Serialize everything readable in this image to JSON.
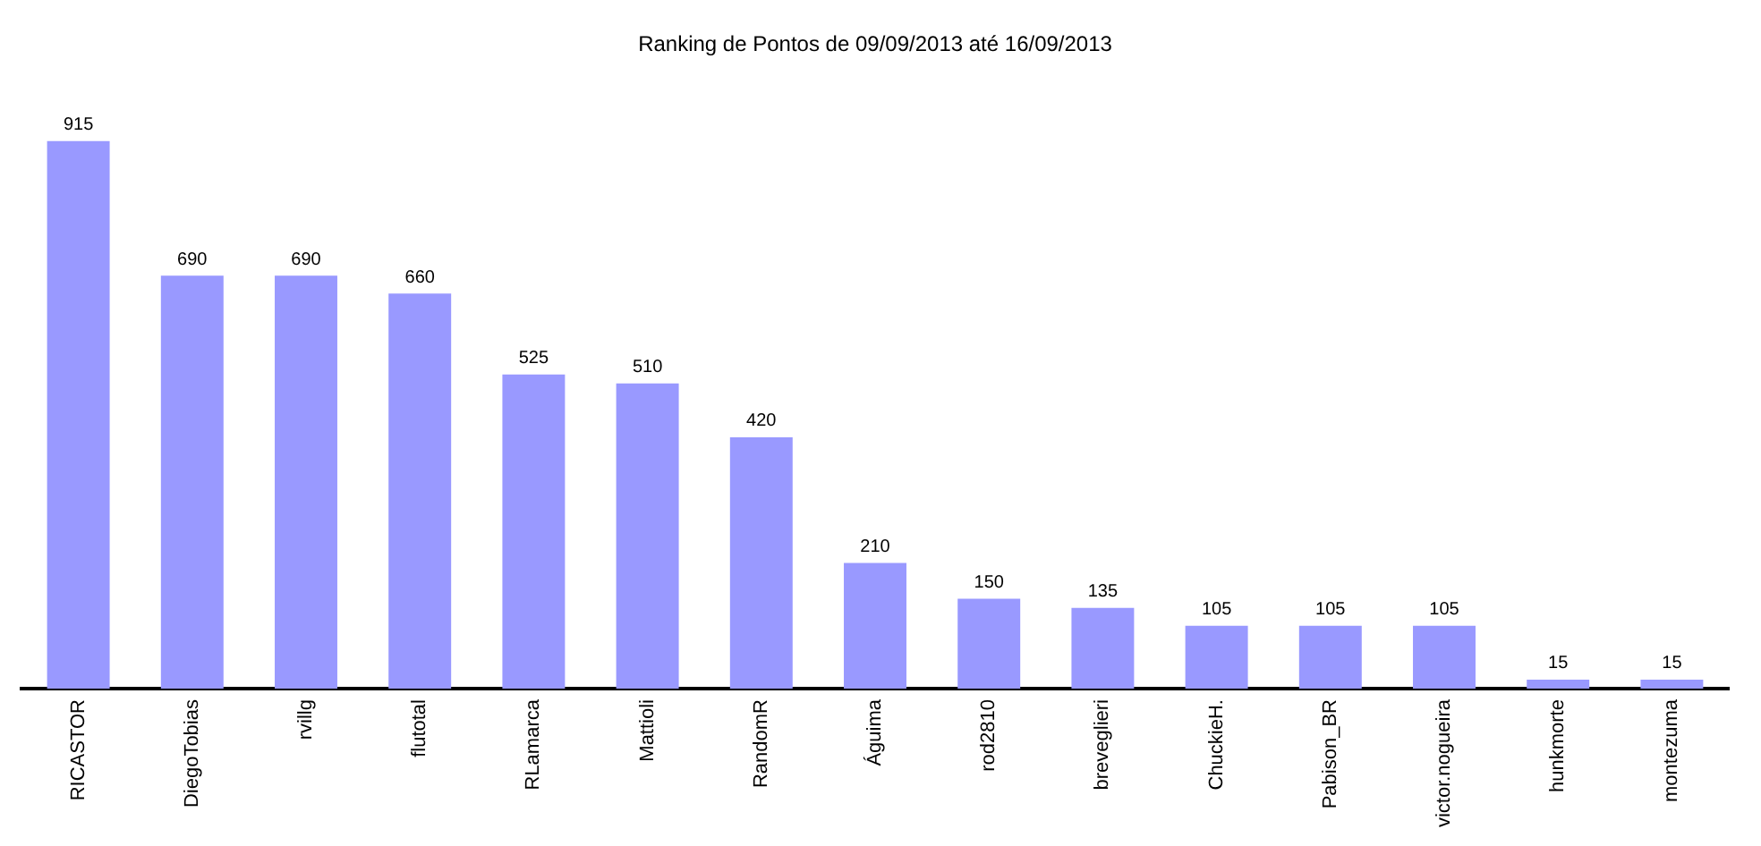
{
  "chart_data": {
    "type": "bar",
    "title": "Ranking de Pontos de 09/09/2013 até 16/09/2013",
    "categories": [
      "RICASTOR",
      "DiegoTobias",
      "rvillg",
      "flutotal",
      "RLamarca",
      "Mattioli",
      "RandomR",
      "Águima",
      "rod2810",
      "breveglieri",
      "ChuckieH.",
      "Pabison_BR",
      "victor.nogueira",
      "hunkmorte",
      "montezuma"
    ],
    "values": [
      915,
      690,
      690,
      660,
      525,
      510,
      420,
      210,
      150,
      135,
      105,
      105,
      105,
      15,
      15
    ],
    "color": "#9999ff",
    "data_labels": true,
    "tick_labels": "x",
    "grid": false,
    "legend": false
  }
}
